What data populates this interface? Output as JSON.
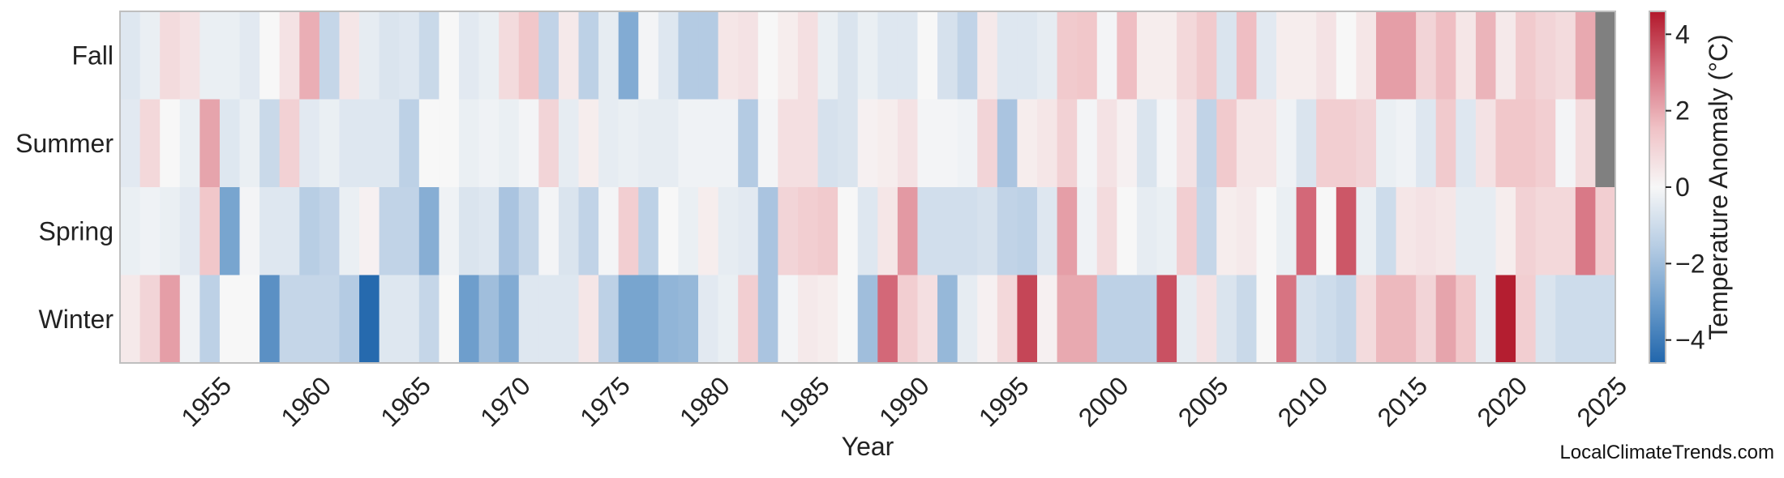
{
  "chart_data": {
    "type": "heatmap",
    "xlabel": "Year",
    "colorbar_label": "Temperature Anomaly (°C)",
    "colorbar_range": [
      -4.6,
      4.6
    ],
    "colorbar_ticks": [
      -4,
      -2,
      0,
      2,
      4
    ],
    "colorbar_tick_labels": [
      "−4",
      "−2",
      "0",
      "2",
      "4"
    ],
    "colormap": [
      "#2166ac",
      "#6b9ccb",
      "#b7cde4",
      "#f7f7f7",
      "#f0c2c6",
      "#d6707f",
      "#b2182b"
    ],
    "missing_color": "#808080",
    "x_start": 1951,
    "x_end": 2025,
    "x_ticks": [
      1955,
      1960,
      1965,
      1970,
      1975,
      1980,
      1985,
      1990,
      1995,
      2000,
      2005,
      2010,
      2015,
      2020,
      2025
    ],
    "rows": [
      "Fall",
      "Summer",
      "Spring",
      "Winter"
    ],
    "values": {
      "Fall": [
        -0.6,
        -0.3,
        0.8,
        0.6,
        -0.3,
        -0.3,
        -0.5,
        0.0,
        0.6,
        1.9,
        -1.2,
        0.5,
        -0.4,
        -0.7,
        -0.6,
        -1.1,
        0.0,
        -0.5,
        -0.3,
        0.8,
        1.4,
        -1.3,
        0.4,
        -1.4,
        -0.4,
        -2.6,
        -0.1,
        -0.6,
        -1.6,
        -1.6,
        0.5,
        0.6,
        0.0,
        0.3,
        0.7,
        -0.3,
        -0.7,
        -0.3,
        -0.6,
        -0.6,
        0.0,
        -0.8,
        -1.3,
        0.4,
        -0.6,
        -0.6,
        -0.4,
        1.3,
        1.4,
        -0.1,
        1.6,
        0.3,
        0.3,
        0.9,
        1.3,
        -0.7,
        1.6,
        -0.5,
        0.3,
        0.3,
        0.6,
        0.0,
        0.5,
        2.2,
        2.2,
        1.0,
        1.6,
        0.5,
        1.8,
        0.4,
        1.3,
        1.0,
        0.8,
        2.0,
        null
      ],
      "Summer": [
        -0.5,
        0.9,
        0.0,
        -0.3,
        2.1,
        -0.6,
        -0.3,
        -1.1,
        1.1,
        -0.5,
        -0.3,
        -0.6,
        -0.6,
        -0.6,
        -1.4,
        0.0,
        0.0,
        -0.3,
        -0.2,
        -0.3,
        -0.1,
        1.0,
        -0.4,
        0.3,
        -0.4,
        -0.3,
        -0.4,
        -0.4,
        -0.2,
        -0.2,
        -0.2,
        -1.6,
        -0.1,
        0.7,
        0.7,
        -0.8,
        -0.7,
        0.2,
        0.3,
        0.6,
        -0.1,
        -0.1,
        -0.2,
        1.0,
        -1.8,
        0.3,
        0.5,
        1.1,
        -0.1,
        0.6,
        0.2,
        -0.7,
        -0.1,
        0.6,
        -1.3,
        1.3,
        0.5,
        0.5,
        -0.2,
        -0.7,
        1.2,
        1.2,
        1.0,
        -0.3,
        -0.2,
        -0.6,
        1.3,
        -0.6,
        0.6,
        1.4,
        1.4,
        1.2,
        -0.1,
        0.8,
        null
      ],
      "Spring": [
        -0.3,
        -0.2,
        -0.3,
        -0.5,
        1.4,
        -2.8,
        -0.1,
        -0.6,
        -0.6,
        -1.5,
        -1.3,
        -0.3,
        0.2,
        -1.3,
        -1.3,
        -2.5,
        -0.2,
        -0.7,
        -0.6,
        -1.8,
        -1.2,
        -0.1,
        -0.7,
        -1.3,
        -0.1,
        1.2,
        -1.4,
        0.0,
        -0.3,
        0.3,
        -0.4,
        -0.5,
        -1.8,
        1.0,
        1.2,
        1.3,
        0.0,
        -0.6,
        0.5,
        2.3,
        -0.9,
        -0.9,
        -0.9,
        -0.8,
        -1.3,
        -1.4,
        -0.6,
        2.2,
        -0.2,
        0.8,
        0.0,
        -0.4,
        -0.3,
        1.2,
        -1.2,
        0.3,
        0.4,
        0.0,
        -0.3,
        3.2,
        0.0,
        3.5,
        -0.3,
        -1.0,
        0.5,
        0.6,
        0.5,
        -0.4,
        -0.4,
        0.3,
        1.1,
        0.9,
        0.9,
        2.9,
        1.2
      ],
      "Winter": [
        0.4,
        1.0,
        2.2,
        -0.2,
        -1.4,
        0.0,
        0.0,
        -3.4,
        -1.2,
        -1.2,
        -1.2,
        -1.6,
        -4.5,
        -0.6,
        -0.6,
        -1.2,
        0.0,
        -3.0,
        -2.0,
        -2.6,
        -0.6,
        -0.6,
        -0.6,
        0.5,
        -1.4,
        -2.8,
        -2.8,
        -2.3,
        -2.2,
        -0.5,
        -0.3,
        1.2,
        -1.8,
        -0.1,
        0.4,
        0.3,
        0.0,
        -2.0,
        3.2,
        1.2,
        0.7,
        -2.2,
        -0.4,
        0.2,
        0.9,
        3.8,
        0.2,
        2.0,
        2.0,
        -1.4,
        -1.4,
        -1.4,
        3.6,
        -0.4,
        0.6,
        -0.7,
        -1.1,
        0.0,
        3.0,
        -0.8,
        -1.0,
        -1.2,
        0.8,
        1.7,
        1.7,
        1.0,
        2.1,
        1.4,
        -0.4,
        4.5,
        1.2,
        -0.7,
        -1.0,
        -1.0,
        -1.0
      ]
    }
  },
  "watermark": "LocalClimateTrends.com"
}
